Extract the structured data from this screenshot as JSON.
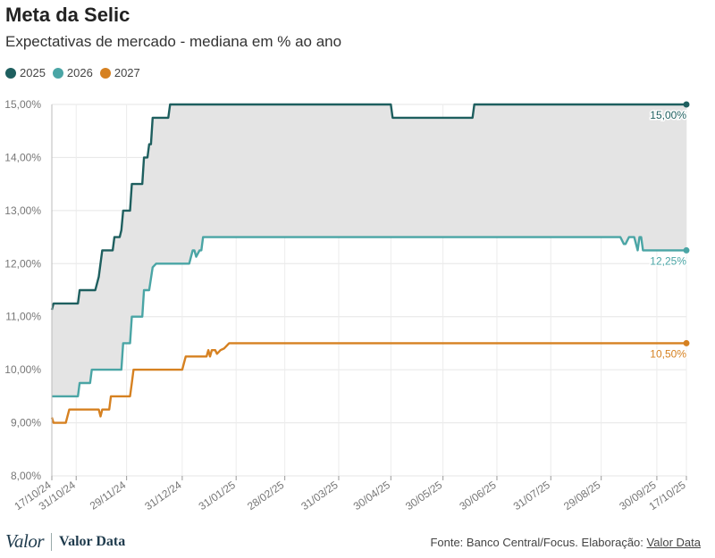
{
  "title": "Meta da Selic",
  "subtitle": "Expectativas de mercado - mediana em % ao ano",
  "legend": [
    {
      "name": "2025",
      "color": "#1e5f5f"
    },
    {
      "name": "2026",
      "color": "#4aa5a5"
    },
    {
      "name": "2027",
      "color": "#d68121"
    }
  ],
  "footer": {
    "logo_primary": "Valor",
    "logo_secondary": "Valor Data",
    "source_text": "Fonte: Banco Central/Focus. Elaboração:",
    "source_link": "Valor Data"
  },
  "chart_data": {
    "type": "line",
    "x_start": "2024-10-17",
    "x_end": "2025-10-17",
    "ylim": [
      8,
      15
    ],
    "y_ticks": [
      "8,00%",
      "9,00%",
      "10,00%",
      "11,00%",
      "12,00%",
      "13,00%",
      "14,00%",
      "15,00%"
    ],
    "x_ticks": [
      "17/10/24",
      "31/10/24",
      "29/11/24",
      "31/12/24",
      "31/01/25",
      "28/02/25",
      "31/03/25",
      "30/04/25",
      "30/05/25",
      "30/06/25",
      "31/07/25",
      "29/08/25",
      "30/09/25",
      "17/10/25"
    ],
    "x_tick_dates": [
      "2024-10-17",
      "2024-10-31",
      "2024-11-29",
      "2024-12-31",
      "2025-01-31",
      "2025-02-28",
      "2025-03-31",
      "2025-04-30",
      "2025-05-30",
      "2025-06-30",
      "2025-07-31",
      "2025-08-29",
      "2025-09-30",
      "2025-10-17"
    ],
    "grid": true,
    "shaded_band_between": [
      "2025",
      "2026"
    ],
    "series": [
      {
        "name": "2025",
        "color": "#1e5f5f",
        "end_label": "15,00%",
        "points": [
          [
            "2024-10-17",
            11.13
          ],
          [
            "2024-10-18",
            11.25
          ],
          [
            "2024-11-01",
            11.25
          ],
          [
            "2024-11-02",
            11.5
          ],
          [
            "2024-11-11",
            11.5
          ],
          [
            "2024-11-13",
            11.75
          ],
          [
            "2024-11-15",
            12.25
          ],
          [
            "2024-11-21",
            12.25
          ],
          [
            "2024-11-22",
            12.5
          ],
          [
            "2024-11-25",
            12.5
          ],
          [
            "2024-11-26",
            12.63
          ],
          [
            "2024-11-27",
            13.0
          ],
          [
            "2024-12-01",
            13.0
          ],
          [
            "2024-12-02",
            13.5
          ],
          [
            "2024-12-08",
            13.5
          ],
          [
            "2024-12-09",
            14.0
          ],
          [
            "2024-12-11",
            14.0
          ],
          [
            "2024-12-12",
            14.25
          ],
          [
            "2024-12-13",
            14.25
          ],
          [
            "2024-12-14",
            14.75
          ],
          [
            "2024-12-23",
            14.75
          ],
          [
            "2024-12-24",
            15.0
          ],
          [
            "2025-04-30",
            15.0
          ],
          [
            "2025-05-01",
            14.75
          ],
          [
            "2025-06-16",
            14.75
          ],
          [
            "2025-06-17",
            15.0
          ],
          [
            "2025-10-17",
            15.0
          ]
        ]
      },
      {
        "name": "2026",
        "color": "#4aa5a5",
        "end_label": "12,25%",
        "points": [
          [
            "2024-10-17",
            9.5
          ],
          [
            "2024-11-01",
            9.5
          ],
          [
            "2024-11-02",
            9.75
          ],
          [
            "2024-11-08",
            9.75
          ],
          [
            "2024-11-09",
            10.0
          ],
          [
            "2024-11-26",
            10.0
          ],
          [
            "2024-11-27",
            10.5
          ],
          [
            "2024-12-01",
            10.5
          ],
          [
            "2024-12-02",
            11.0
          ],
          [
            "2024-12-08",
            11.0
          ],
          [
            "2024-12-09",
            11.5
          ],
          [
            "2024-12-12",
            11.5
          ],
          [
            "2024-12-14",
            11.93
          ],
          [
            "2024-12-16",
            12.0
          ],
          [
            "2025-01-04",
            12.0
          ],
          [
            "2025-01-06",
            12.25
          ],
          [
            "2025-01-07",
            12.25
          ],
          [
            "2025-01-08",
            12.13
          ],
          [
            "2025-01-10",
            12.25
          ],
          [
            "2025-01-11",
            12.25
          ],
          [
            "2025-01-12",
            12.5
          ],
          [
            "2025-09-09",
            12.5
          ],
          [
            "2025-09-11",
            12.37
          ],
          [
            "2025-09-12",
            12.37
          ],
          [
            "2025-09-14",
            12.5
          ],
          [
            "2025-09-17",
            12.5
          ],
          [
            "2025-09-19",
            12.25
          ],
          [
            "2025-09-20",
            12.5
          ],
          [
            "2025-09-21",
            12.5
          ],
          [
            "2025-09-22",
            12.25
          ],
          [
            "2025-10-17",
            12.25
          ]
        ]
      },
      {
        "name": "2027",
        "color": "#d68121",
        "end_label": "10,50%",
        "points": [
          [
            "2024-10-17",
            9.1
          ],
          [
            "2024-10-18",
            9.0
          ],
          [
            "2024-10-25",
            9.0
          ],
          [
            "2024-10-27",
            9.25
          ],
          [
            "2024-11-13",
            9.25
          ],
          [
            "2024-11-14",
            9.12
          ],
          [
            "2024-11-15",
            9.25
          ],
          [
            "2024-11-19",
            9.25
          ],
          [
            "2024-11-20",
            9.5
          ],
          [
            "2024-12-01",
            9.5
          ],
          [
            "2024-12-02",
            9.75
          ],
          [
            "2024-12-03",
            10.0
          ],
          [
            "2024-12-31",
            10.0
          ],
          [
            "2025-01-02",
            10.25
          ],
          [
            "2025-01-14",
            10.25
          ],
          [
            "2025-01-15",
            10.37
          ],
          [
            "2025-01-16",
            10.25
          ],
          [
            "2025-01-17",
            10.37
          ],
          [
            "2025-01-19",
            10.37
          ],
          [
            "2025-01-20",
            10.3
          ],
          [
            "2025-01-22",
            10.37
          ],
          [
            "2025-01-24",
            10.4
          ],
          [
            "2025-01-27",
            10.5
          ],
          [
            "2025-10-17",
            10.5
          ]
        ]
      }
    ]
  }
}
